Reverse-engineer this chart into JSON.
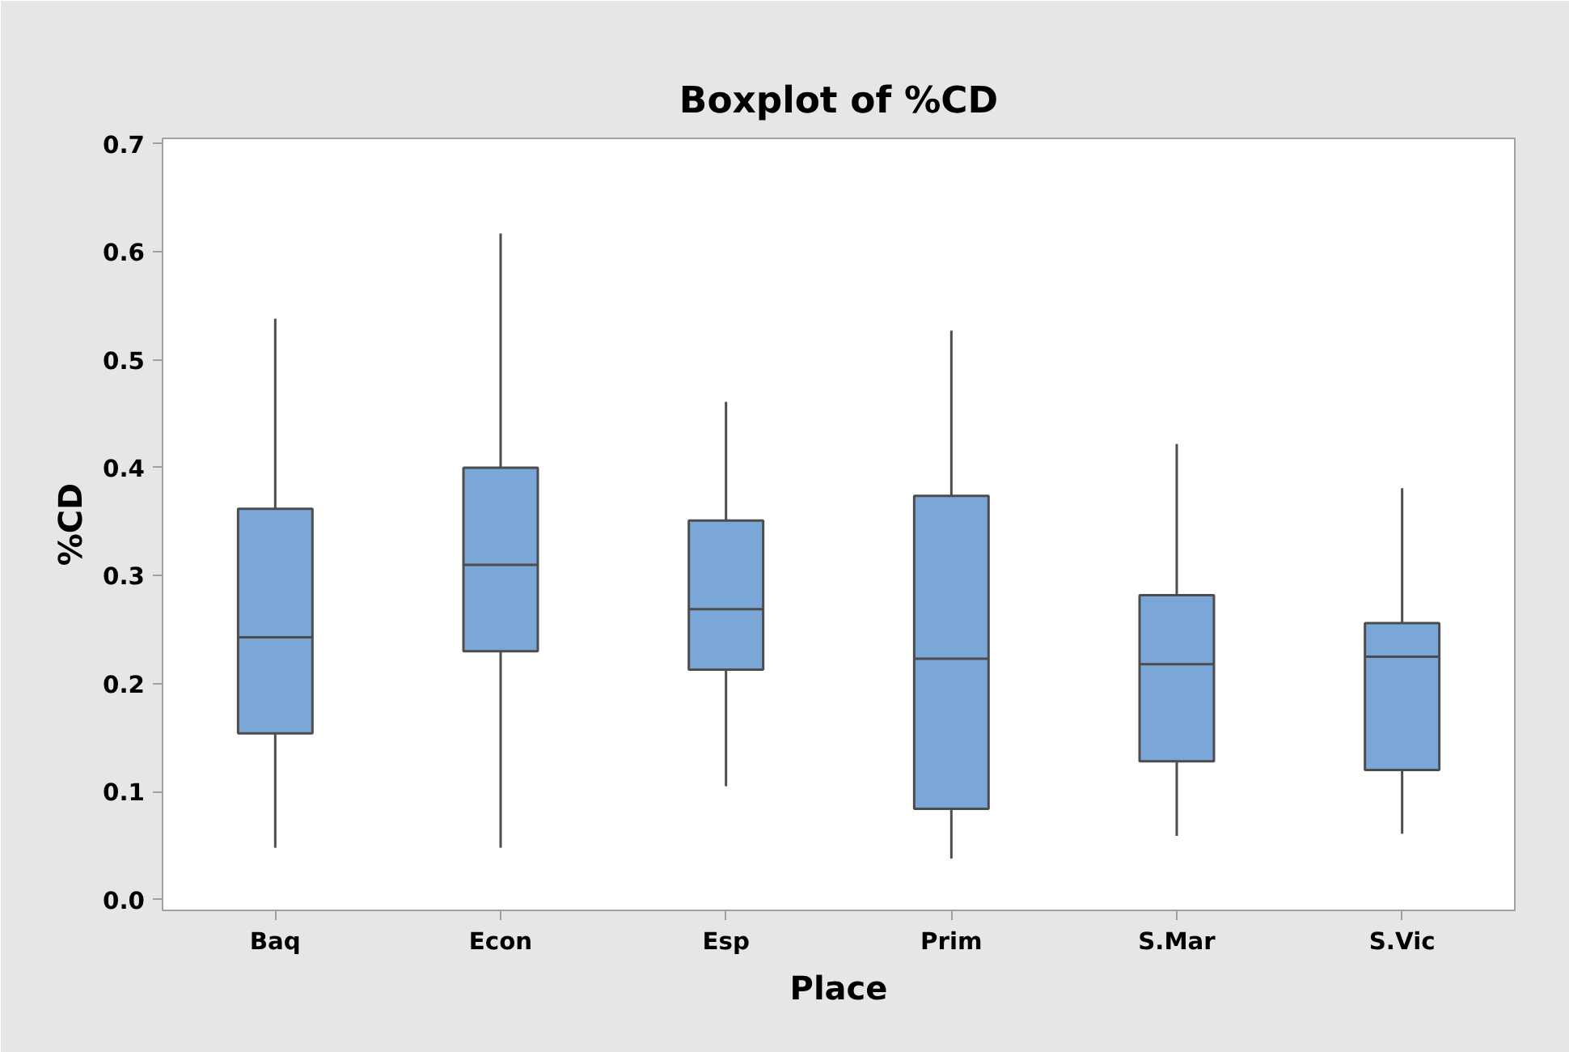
{
  "chart_data": {
    "type": "box",
    "title": "Boxplot of %CD",
    "xlabel": "Place",
    "ylabel": "%CD",
    "categories": [
      "Baq",
      "Econ",
      "Esp",
      "Prim",
      "S.Mar",
      "S.Vic"
    ],
    "color": "#7ba7d8",
    "boxes": [
      {
        "low": 0.048,
        "q1": 0.154,
        "median": 0.243,
        "q3": 0.362,
        "high": 0.538
      },
      {
        "low": 0.048,
        "q1": 0.23,
        "median": 0.31,
        "q3": 0.4,
        "high": 0.617
      },
      {
        "low": 0.105,
        "q1": 0.213,
        "median": 0.269,
        "q3": 0.351,
        "high": 0.461
      },
      {
        "low": 0.038,
        "q1": 0.084,
        "median": 0.223,
        "q3": 0.374,
        "high": 0.527
      },
      {
        "low": 0.059,
        "q1": 0.128,
        "median": 0.218,
        "q3": 0.282,
        "high": 0.422
      },
      {
        "low": 0.061,
        "q1": 0.12,
        "median": 0.225,
        "q3": 0.256,
        "high": 0.381
      }
    ],
    "ylim": [
      -0.01,
      0.705
    ],
    "yticks": [
      {
        "value": 0,
        "label": "0.0"
      },
      0.1,
      0.2,
      0.3,
      0.4,
      0.5,
      0.6,
      0.7
    ],
    "grid": false
  }
}
